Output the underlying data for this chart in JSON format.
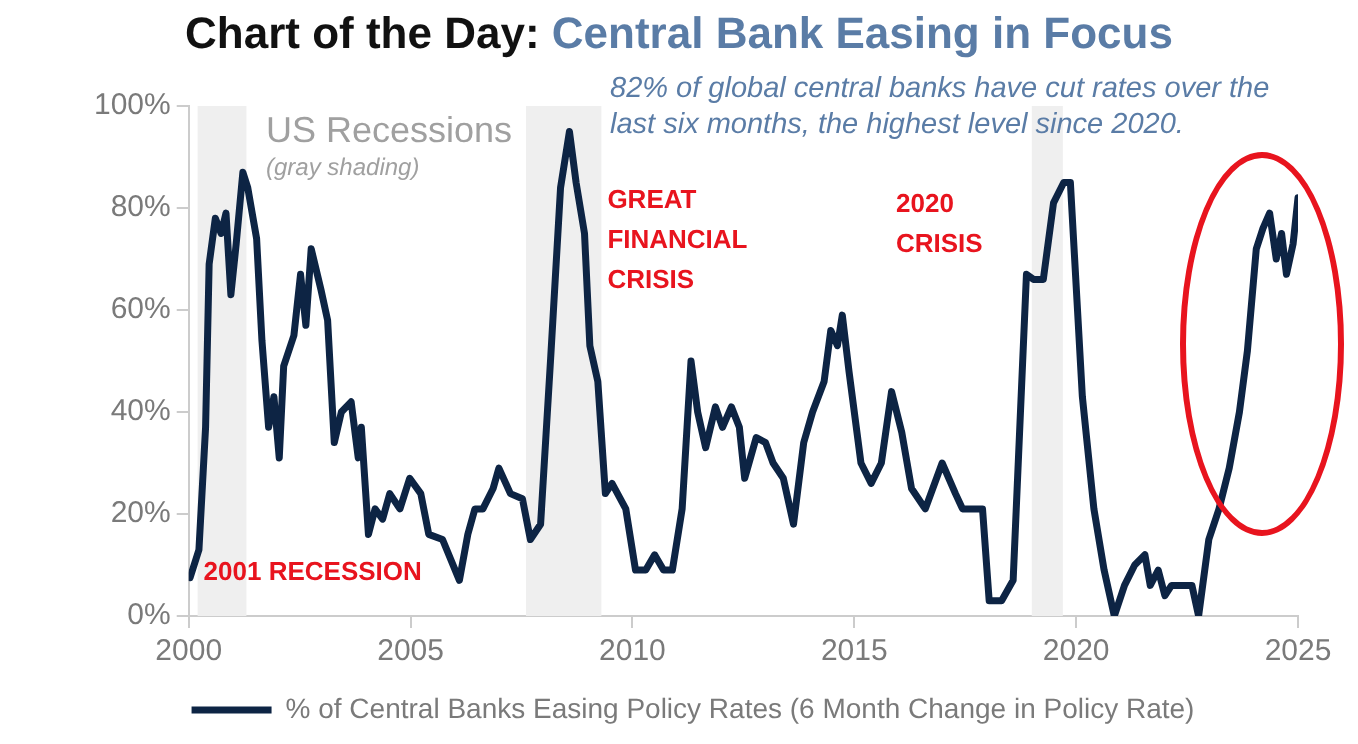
{
  "chart_data": {
    "type": "line",
    "title": "Chart of the Day: Central Bank Easing in Focus",
    "x": [
      2000.03,
      2000.23,
      2000.38,
      2000.46,
      2000.6,
      2000.73,
      2000.84,
      2000.95,
      2001.07,
      2001.22,
      2001.33,
      2001.53,
      2001.65,
      2001.8,
      2001.92,
      2002.04,
      2002.14,
      2002.37,
      2002.52,
      2002.64,
      2002.76,
      2002.98,
      2003.13,
      2003.28,
      2003.44,
      2003.66,
      2003.82,
      2003.89,
      2004.05,
      2004.2,
      2004.37,
      2004.53,
      2004.76,
      2004.98,
      2005.23,
      2005.41,
      2005.72,
      2006.1,
      2006.29,
      2006.45,
      2006.63,
      2006.86,
      2006.99,
      2007.25,
      2007.52,
      2007.7,
      2007.93,
      2008.16,
      2008.38,
      2008.58,
      2008.73,
      2008.92,
      2009.04,
      2009.22,
      2009.39,
      2009.54,
      2009.85,
      2010.07,
      2010.3,
      2010.5,
      2010.7,
      2010.9,
      2011.12,
      2011.32,
      2011.47,
      2011.65,
      2011.87,
      2012.03,
      2012.23,
      2012.41,
      2012.53,
      2012.79,
      2013.0,
      2013.17,
      2013.4,
      2013.63,
      2013.86,
      2014.06,
      2014.32,
      2014.47,
      2014.62,
      2014.73,
      2014.88,
      2015.15,
      2015.38,
      2015.61,
      2015.84,
      2016.07,
      2016.29,
      2016.6,
      2016.98,
      2017.28,
      2017.44,
      2017.89,
      2018.04,
      2018.32,
      2018.58,
      2018.88,
      2019.04,
      2019.26,
      2019.49,
      2019.72,
      2019.87,
      2020.14,
      2020.4,
      2020.63,
      2020.86,
      2021.09,
      2021.32,
      2021.55,
      2021.67,
      2021.85,
      2022.0,
      2022.15,
      2022.38,
      2022.61,
      2022.76,
      2022.99,
      2023.22,
      2023.45,
      2023.68,
      2023.86,
      2024.06,
      2024.21,
      2024.36,
      2024.51,
      2024.63,
      2024.74,
      2024.89,
      2025.0
    ],
    "series": [
      {
        "name": "% of Central Banks Easing Policy Rates (6 Month Change in Policy Rate)",
        "color": "#0d2444",
        "values": [
          7.5,
          13,
          37,
          69,
          78,
          75,
          79,
          63,
          73,
          87,
          84,
          74,
          54,
          37,
          43,
          31,
          49,
          55,
          67,
          57,
          72,
          64,
          58,
          34,
          40,
          42,
          31,
          37,
          16,
          21,
          19,
          24,
          21,
          27,
          24,
          16,
          15,
          7,
          16,
          21,
          21,
          25,
          29,
          24,
          23,
          15,
          18,
          51,
          84,
          95,
          85,
          75,
          53,
          46,
          24,
          26,
          21,
          9,
          9,
          12,
          9,
          9,
          21,
          50,
          40,
          33,
          41,
          37,
          41,
          37,
          27,
          35,
          34,
          30,
          27,
          18,
          34,
          40,
          46,
          56,
          53,
          59,
          48,
          30,
          26,
          30,
          44,
          36,
          25,
          21,
          30,
          24,
          21,
          21,
          3,
          3,
          7,
          67,
          66,
          66,
          81,
          85,
          85,
          43,
          21,
          9,
          0,
          6,
          10,
          12,
          6,
          9,
          4,
          6,
          6,
          6,
          0,
          15,
          21,
          29,
          40,
          52,
          72,
          76,
          79,
          70,
          75,
          67,
          73,
          82
        ]
      }
    ],
    "xlim": [
      2000,
      2025
    ],
    "xticks": [
      2000,
      2005,
      2010,
      2015,
      2020,
      2025
    ],
    "ylim": [
      0,
      100
    ],
    "yticks": [
      {
        "value": 0,
        "label": "0%"
      },
      {
        "value": 20,
        "label": "20%"
      },
      {
        "value": 40,
        "label": "40%"
      },
      {
        "value": 60,
        "label": "60%"
      },
      {
        "value": 80,
        "label": "80%"
      },
      {
        "value": 100,
        "label": "100%"
      }
    ],
    "bands": [
      {
        "axis": "x",
        "from": 2000.2,
        "to": 2001.3,
        "color": "#efefef"
      },
      {
        "axis": "x",
        "from": 2007.6,
        "to": 2009.3,
        "color": "#efefef"
      },
      {
        "axis": "x",
        "from": 2019.0,
        "to": 2019.7,
        "color": "#efefef"
      }
    ],
    "annotations": [
      "US Recessions",
      "(gray shading)",
      "82% of global central banks have cut rates over the last six months, the highest level since 2020.",
      {
        "text": "2001 RECESSION",
        "x": 2000.2,
        "y": 11
      },
      {
        "text": "GREAT FINANCIAL CRISIS",
        "x": 2009.3,
        "y": 84
      },
      "2020 CRISIS"
    ],
    "grid": false,
    "legend": "bottom",
    "marker": "none",
    "line_style": "solid"
  }
}
